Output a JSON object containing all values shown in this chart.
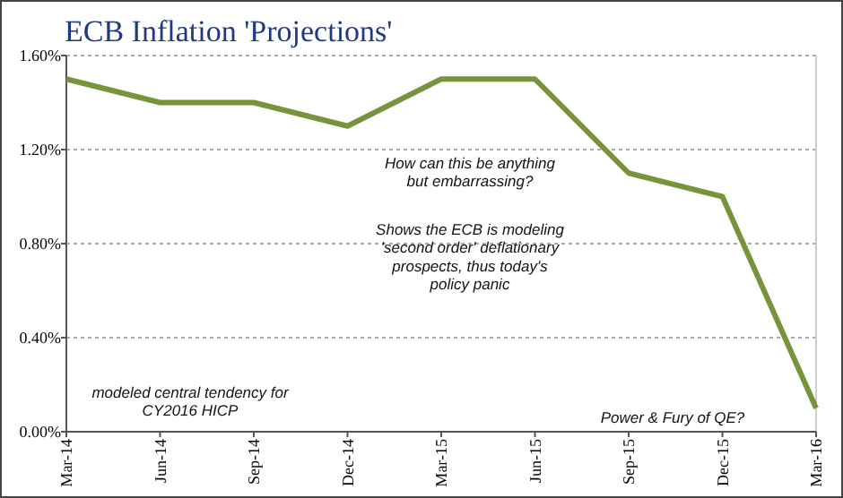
{
  "chart_data": {
    "type": "line",
    "title": "ECB Inflation 'Projections'",
    "categories": [
      "Mar-14",
      "Jun-14",
      "Sep-14",
      "Dec-14",
      "Mar-15",
      "Jun-15",
      "Sep-15",
      "Dec-15",
      "Mar-16"
    ],
    "values": [
      1.5,
      1.4,
      1.4,
      1.3,
      1.5,
      1.5,
      1.1,
      1.0,
      0.1
    ],
    "color": "#77933c",
    "ylim": [
      0,
      1.6
    ],
    "yticks": [
      {
        "value": 0,
        "label": "0.00%"
      },
      {
        "value": 0.4,
        "label": "0.40%"
      },
      {
        "value": 0.8,
        "label": "0.80%"
      },
      {
        "value": 1.2,
        "label": "1.20%"
      },
      {
        "value": 1.6,
        "label": "1.60%"
      }
    ],
    "grid": "y",
    "marker": "none",
    "line_style": "solid",
    "annotations": [
      "How can this be anything but embarrassing?",
      "Shows the ECB is modeling 'second order' deflationary prospects, thus today's policy panic",
      "modeled central tendency for CY2016 HICP",
      "Power & Fury of QE?"
    ]
  }
}
